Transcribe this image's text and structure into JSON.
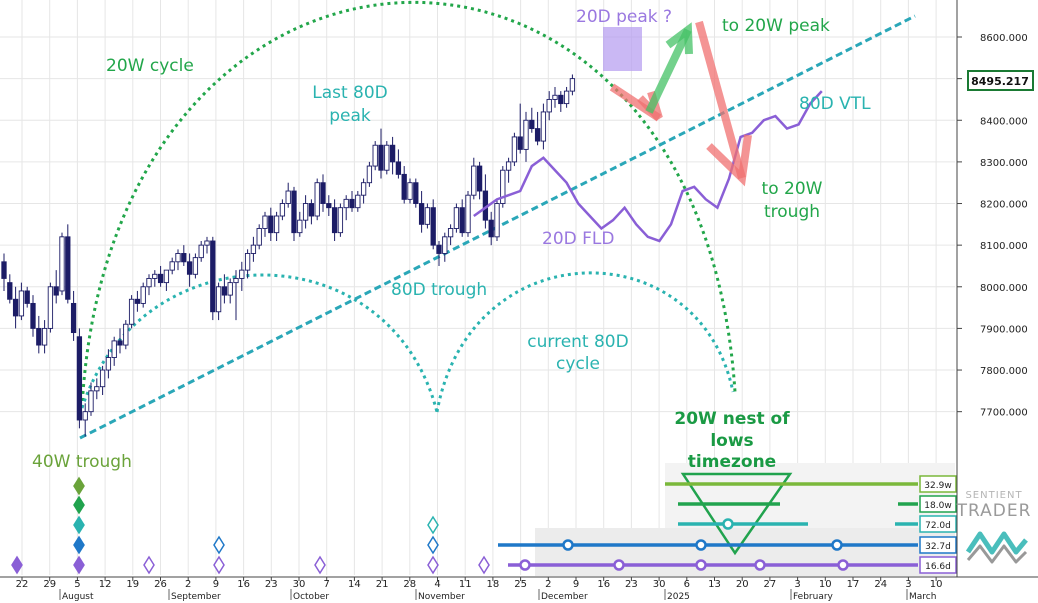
{
  "chart_data": {
    "type": "candlestick",
    "instrument_price_label": "8495.217",
    "y_axis": {
      "ticks": [
        7700,
        7800,
        7900,
        8000,
        8100,
        8200,
        8300,
        8400,
        8500,
        8600
      ],
      "tick_labels": [
        "7700.000",
        "7800.000",
        "7900.000",
        "8000.000",
        "8100.000",
        "8200.000",
        "8300.000",
        "8400.000",
        "8500.000",
        "8600.000"
      ],
      "range": [
        7600,
        8700
      ]
    },
    "x_axis": {
      "day_labels": [
        "22",
        "29",
        "5",
        "12",
        "19",
        "26",
        "2",
        "9",
        "16",
        "23",
        "30",
        "7",
        "14",
        "21",
        "28",
        "4",
        "11",
        "18",
        "25",
        "2",
        "9",
        "16",
        "23",
        "30",
        "6",
        "13",
        "20",
        "27",
        "3",
        "10",
        "17",
        "24",
        "3",
        "10"
      ],
      "month_labels": [
        "August",
        "September",
        "October",
        "November",
        "December",
        "2025",
        "February",
        "March"
      ]
    },
    "candles": [
      [
        8060,
        8080,
        7990,
        8020
      ],
      [
        8010,
        8030,
        7960,
        7970
      ],
      [
        7970,
        8000,
        7900,
        7930
      ],
      [
        7930,
        8010,
        7920,
        7990
      ],
      [
        7990,
        8000,
        7950,
        7960
      ],
      [
        7960,
        7980,
        7880,
        7900
      ],
      [
        7900,
        7930,
        7840,
        7860
      ],
      [
        7860,
        7920,
        7840,
        7900
      ],
      [
        7900,
        8010,
        7890,
        8000
      ],
      [
        8000,
        8040,
        7960,
        7980
      ],
      [
        7990,
        8130,
        7980,
        8120
      ],
      [
        8120,
        8150,
        7960,
        7970
      ],
      [
        7960,
        7990,
        7870,
        7890
      ],
      [
        7880,
        7900,
        7660,
        7680
      ],
      [
        7680,
        7720,
        7640,
        7700
      ],
      [
        7700,
        7770,
        7690,
        7750
      ],
      [
        7750,
        7780,
        7730,
        7760
      ],
      [
        7760,
        7810,
        7740,
        7800
      ],
      [
        7800,
        7850,
        7780,
        7830
      ],
      [
        7830,
        7880,
        7810,
        7870
      ],
      [
        7870,
        7900,
        7840,
        7860
      ],
      [
        7860,
        7920,
        7850,
        7910
      ],
      [
        7910,
        7980,
        7900,
        7970
      ],
      [
        7970,
        7990,
        7940,
        7960
      ],
      [
        7960,
        8010,
        7950,
        8000
      ],
      [
        8000,
        8030,
        7980,
        8020
      ],
      [
        8020,
        8040,
        8000,
        8030
      ],
      [
        8030,
        8050,
        8000,
        8010
      ],
      [
        8010,
        8040,
        7990,
        8040
      ],
      [
        8040,
        8070,
        8030,
        8060
      ],
      [
        8060,
        8090,
        8040,
        8080
      ],
      [
        8080,
        8100,
        8050,
        8060
      ],
      [
        8060,
        8080,
        8000,
        8030
      ],
      [
        8030,
        8080,
        8020,
        8070
      ],
      [
        8070,
        8110,
        8060,
        8100
      ],
      [
        8100,
        8120,
        8080,
        8110
      ],
      [
        8110,
        8120,
        7920,
        7940
      ],
      [
        7940,
        8010,
        7920,
        8000
      ],
      [
        8000,
        8030,
        7960,
        7980
      ],
      [
        7980,
        8020,
        7960,
        8010
      ],
      [
        8010,
        8040,
        7920,
        8020
      ],
      [
        8020,
        8060,
        7990,
        8040
      ],
      [
        8040,
        8090,
        8020,
        8080
      ],
      [
        8080,
        8120,
        8060,
        8100
      ],
      [
        8100,
        8150,
        8090,
        8140
      ],
      [
        8140,
        8180,
        8120,
        8170
      ],
      [
        8170,
        8190,
        8110,
        8130
      ],
      [
        8130,
        8180,
        8110,
        8170
      ],
      [
        8170,
        8210,
        8160,
        8200
      ],
      [
        8200,
        8250,
        8190,
        8230
      ],
      [
        8230,
        8240,
        8110,
        8130
      ],
      [
        8130,
        8180,
        8120,
        8160
      ],
      [
        8160,
        8220,
        8140,
        8200
      ],
      [
        8200,
        8210,
        8150,
        8170
      ],
      [
        8170,
        8260,
        8160,
        8250
      ],
      [
        8250,
        8270,
        8180,
        8200
      ],
      [
        8200,
        8220,
        8170,
        8190
      ],
      [
        8190,
        8210,
        8110,
        8130
      ],
      [
        8130,
        8200,
        8120,
        8190
      ],
      [
        8190,
        8220,
        8160,
        8210
      ],
      [
        8210,
        8230,
        8180,
        8190
      ],
      [
        8190,
        8230,
        8180,
        8220
      ],
      [
        8220,
        8260,
        8200,
        8250
      ],
      [
        8250,
        8300,
        8240,
        8290
      ],
      [
        8290,
        8350,
        8280,
        8340
      ],
      [
        8340,
        8380,
        8260,
        8280
      ],
      [
        8280,
        8350,
        8270,
        8340
      ],
      [
        8340,
        8360,
        8270,
        8300
      ],
      [
        8300,
        8330,
        8260,
        8270
      ],
      [
        8270,
        8290,
        8200,
        8210
      ],
      [
        8210,
        8260,
        8200,
        8250
      ],
      [
        8250,
        8260,
        8190,
        8200
      ],
      [
        8200,
        8230,
        8130,
        8150
      ],
      [
        8150,
        8200,
        8140,
        8190
      ],
      [
        8190,
        8210,
        8090,
        8100
      ],
      [
        8100,
        8110,
        8050,
        8080
      ],
      [
        8080,
        8130,
        8060,
        8120
      ],
      [
        8120,
        8150,
        8100,
        8140
      ],
      [
        8140,
        8200,
        8130,
        8190
      ],
      [
        8190,
        8210,
        8120,
        8130
      ],
      [
        8130,
        8230,
        8120,
        8220
      ],
      [
        8220,
        8310,
        8210,
        8290
      ],
      [
        8290,
        8300,
        8210,
        8230
      ],
      [
        8230,
        8270,
        8140,
        8160
      ],
      [
        8160,
        8180,
        8100,
        8120
      ],
      [
        8120,
        8210,
        8110,
        8200
      ],
      [
        8200,
        8290,
        8190,
        8280
      ],
      [
        8280,
        8310,
        8250,
        8300
      ],
      [
        8300,
        8370,
        8290,
        8360
      ],
      [
        8360,
        8440,
        8320,
        8330
      ],
      [
        8330,
        8420,
        8300,
        8400
      ],
      [
        8400,
        8430,
        8370,
        8380
      ],
      [
        8380,
        8420,
        8340,
        8350
      ],
      [
        8350,
        8440,
        8330,
        8420
      ],
      [
        8420,
        8470,
        8400,
        8450
      ],
      [
        8450,
        8480,
        8430,
        8460
      ],
      [
        8460,
        8470,
        8420,
        8440
      ],
      [
        8440,
        8480,
        8430,
        8470
      ],
      [
        8470,
        8510,
        8460,
        8500
      ]
    ],
    "fld_20d": [
      [
        81,
        8170
      ],
      [
        83,
        8190
      ],
      [
        85,
        8210
      ],
      [
        87,
        8220
      ],
      [
        89,
        8230
      ],
      [
        91,
        8290
      ],
      [
        93,
        8310
      ],
      [
        95,
        8280
      ],
      [
        97,
        8250
      ],
      [
        99,
        8200
      ],
      [
        101,
        8170
      ],
      [
        103,
        8140
      ],
      [
        105,
        8160
      ],
      [
        107,
        8190
      ],
      [
        109,
        8150
      ],
      [
        111,
        8120
      ],
      [
        113,
        8110
      ],
      [
        115,
        8150
      ],
      [
        117,
        8230
      ],
      [
        119,
        8240
      ],
      [
        121,
        8210
      ],
      [
        123,
        8190
      ],
      [
        125,
        8260
      ],
      [
        127,
        8360
      ],
      [
        129,
        8370
      ],
      [
        131,
        8400
      ],
      [
        133,
        8410
      ],
      [
        135,
        8380
      ],
      [
        137,
        8390
      ],
      [
        139,
        8440
      ],
      [
        141,
        8470
      ]
    ],
    "annotations": {
      "cycle_20w": "20W cycle",
      "last_80d_peak_line1": "Last 80D",
      "last_80d_peak_line2": "peak",
      "peak_20d": "20D peak ?",
      "to_20w_peak": "to 20W peak",
      "vtl_80d": "80D VTL",
      "to_20w_trough_line1": "to 20W",
      "to_20w_trough_line2": "trough",
      "fld_20d_label": "20D FLD",
      "trough_80d": "80D trough",
      "current_80d_line1": "current 80D",
      "current_80d_line2": "cycle",
      "nest_line1": "20W nest of",
      "nest_line2": "lows",
      "nest_line3": "timezone",
      "trough_40w": "40W trough"
    },
    "cycle_labels": [
      "32.9w",
      "18.0w",
      "72.0d",
      "32.7d",
      "16.6d"
    ],
    "colors": {
      "bg": "#ffffff",
      "grid": "#e6e6e6",
      "candle_up": "#ffffff",
      "candle_down": "#1c1c66",
      "cycle_20w": "#22a64a",
      "cycle_80d": "#2ab3b0",
      "vtl": "#2aa7b8",
      "fld": "#8a5fd6",
      "peak_box": "#b39af0",
      "red_arrow": "#f07070",
      "green_arrow": "#44c266",
      "price_box": "#1a7a33",
      "line_329w": "#7ab83a",
      "line_180w": "#21a34e",
      "line_720d": "#2ab3b0",
      "line_327d": "#1f78c8",
      "line_166d": "#8a5fd6"
    },
    "brand": {
      "line1": "SENTIENT",
      "line2": "TRADER"
    }
  }
}
